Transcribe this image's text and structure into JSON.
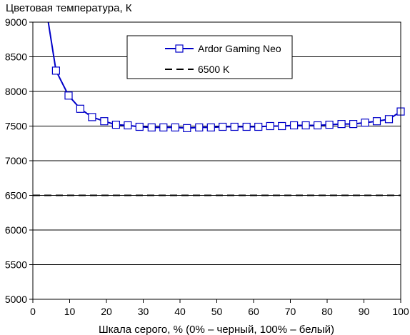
{
  "chart_data": {
    "type": "line",
    "title": "",
    "ylabel": "Цветовая температура, К",
    "xlabel": "Шкала серого, % (0% – черный, 100% – белый)",
    "xlim": [
      0,
      100
    ],
    "ylim": [
      5000,
      9000
    ],
    "xticks": [
      0,
      10,
      20,
      30,
      40,
      50,
      60,
      70,
      80,
      90,
      100
    ],
    "yticks": [
      5000,
      5500,
      6000,
      6500,
      7000,
      7500,
      8000,
      8500,
      9000
    ],
    "grid": "horizontal",
    "legend_position": "top-center",
    "series": [
      {
        "name": "Ardor Gaming Neo",
        "color": "#0000c8",
        "marker": "open-square",
        "line_start": {
          "x": 4.2,
          "y": 9000
        },
        "x": [
          6.3,
          9.7,
          12.9,
          16.1,
          19.4,
          22.6,
          25.8,
          29.0,
          32.3,
          35.5,
          38.7,
          41.9,
          45.2,
          48.4,
          51.6,
          54.8,
          58.1,
          61.3,
          64.5,
          67.7,
          71.0,
          74.2,
          77.4,
          80.6,
          83.9,
          87.1,
          90.3,
          93.5,
          96.8,
          100
        ],
        "y": [
          8300,
          7940,
          7750,
          7630,
          7570,
          7520,
          7510,
          7490,
          7480,
          7480,
          7480,
          7470,
          7480,
          7480,
          7490,
          7490,
          7490,
          7490,
          7500,
          7500,
          7510,
          7510,
          7510,
          7520,
          7530,
          7530,
          7550,
          7570,
          7600,
          7710
        ]
      },
      {
        "name": "6500 K",
        "color": "#000000",
        "style": "dashed",
        "x": [
          0,
          100
        ],
        "y": [
          6500,
          6500
        ]
      }
    ]
  }
}
